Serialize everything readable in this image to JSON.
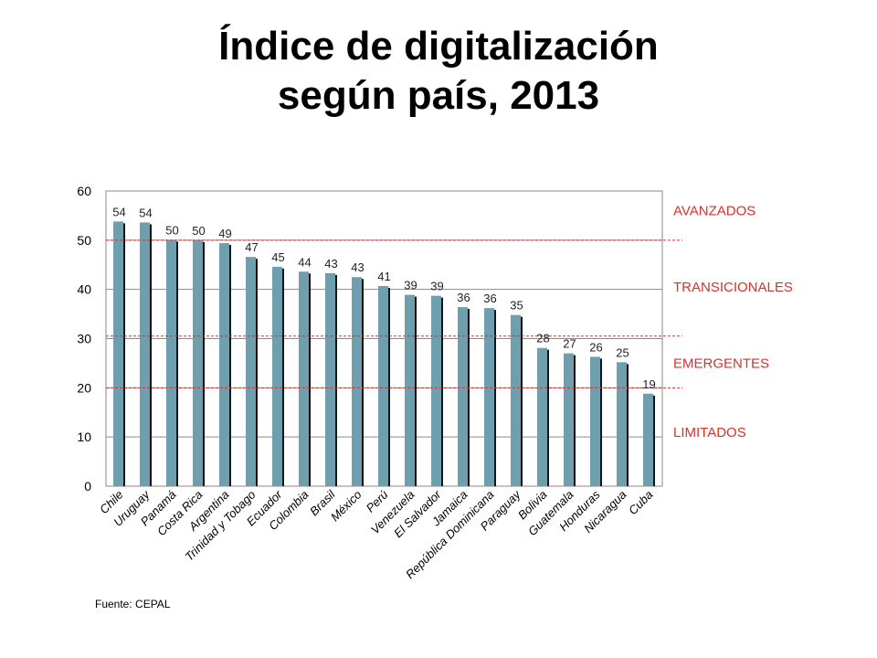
{
  "slide": {
    "title_line1": "Índice de digitalización",
    "title_line2": "según país, 2013",
    "source": "Fuente: CEPAL"
  },
  "colors": {
    "bar": "#6f9fae",
    "bar_shadow": "#141414",
    "threshold": "#d9312b",
    "tier_label": "#d9312b",
    "gridline": "#8a8a8a"
  },
  "chart_data": {
    "type": "bar",
    "title": "",
    "xlabel": "",
    "ylabel": "",
    "ylim": [
      0,
      60
    ],
    "yticks": [
      0,
      10,
      20,
      30,
      40,
      50,
      60
    ],
    "grid": true,
    "categories": [
      "Chile",
      "Uruguay",
      "Panamá",
      "Costa Rica",
      "Argentina",
      "Trinidad y Tobago",
      "Ecuador",
      "Colombia",
      "Brasil",
      "México",
      "Perú",
      "Venezuela",
      "El Salvador",
      "Jamaica",
      "República Dominicana",
      "Paraguay",
      "Bolivia",
      "Guatemala",
      "Honduras",
      "Nicaragua",
      "Cuba"
    ],
    "values": [
      53.8,
      53.6,
      50.1,
      50.0,
      49.4,
      46.6,
      44.6,
      43.6,
      43.3,
      42.5,
      40.7,
      38.9,
      38.7,
      36.4,
      36.2,
      34.8,
      28.1,
      27.0,
      26.3,
      25.2,
      18.8
    ],
    "data_labels": [
      "54",
      "54",
      "50",
      "50",
      "49",
      "47",
      "45",
      "44",
      "43",
      "43",
      "41",
      "39",
      "39",
      "36",
      "36",
      "35",
      "28",
      "27",
      "26",
      "25",
      "19"
    ],
    "thresholds": [
      50,
      30.5,
      20
    ],
    "tiers": [
      {
        "label": "AVANZADOS",
        "y": 56
      },
      {
        "label": "TRANSICIONALES",
        "y": 40.5
      },
      {
        "label": "EMERGENTES",
        "y": 25
      },
      {
        "label": "LIMITADOS",
        "y": 11
      }
    ]
  }
}
